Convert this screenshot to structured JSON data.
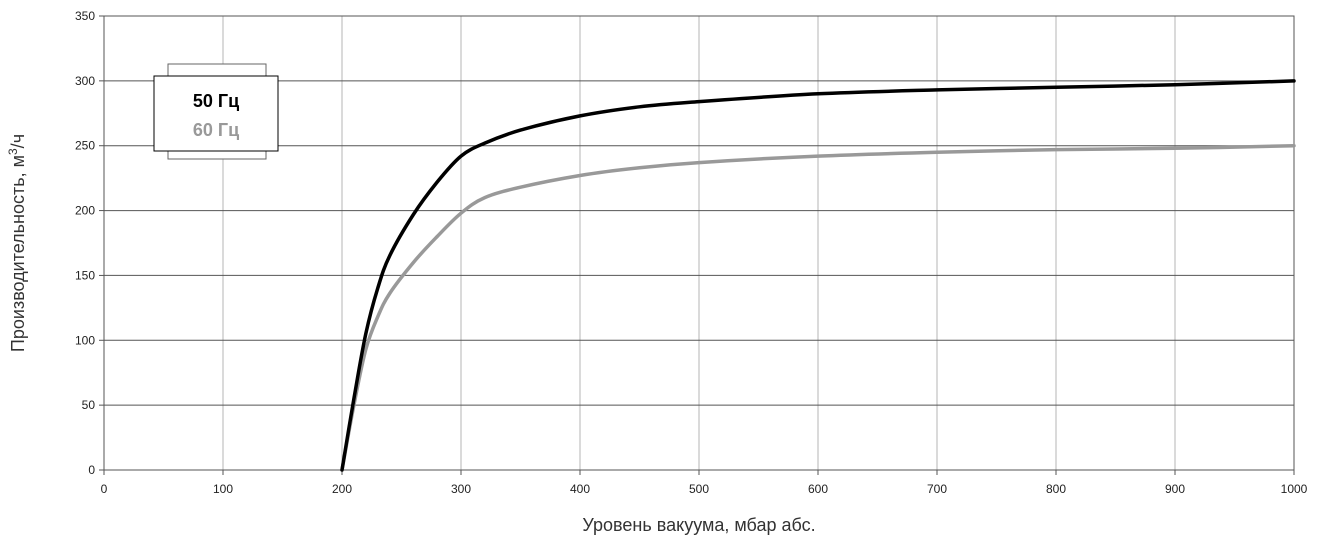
{
  "chart_data": {
    "type": "line",
    "xlabel": "Уровень вакуума, мбар абс.",
    "ylabel_main": "Производительность, м",
    "ylabel_sup": "3",
    "ylabel_tail": "/ч",
    "xlim": [
      0,
      1000
    ],
    "ylim": [
      0,
      350
    ],
    "xticks": [
      0,
      100,
      200,
      300,
      400,
      500,
      600,
      700,
      800,
      900,
      1000
    ],
    "yticks": [
      0,
      50,
      100,
      150,
      200,
      250,
      300,
      350
    ],
    "grid": true,
    "legend_position": "top-left",
    "series": [
      {
        "name": "50 Гц",
        "color": "#000000",
        "x": [
          200,
          210,
          220,
          230,
          240,
          260,
          280,
          300,
          320,
          350,
          400,
          450,
          500,
          600,
          700,
          800,
          900,
          1000
        ],
        "y": [
          0,
          55,
          105,
          140,
          165,
          197,
          222,
          242,
          252,
          262,
          273,
          280,
          284,
          290,
          293,
          295,
          297,
          300
        ]
      },
      {
        "name": "60 Гц",
        "color": "#999999",
        "x": [
          200,
          210,
          220,
          230,
          240,
          260,
          280,
          300,
          320,
          350,
          400,
          450,
          500,
          600,
          700,
          800,
          900,
          1000
        ],
        "y": [
          0,
          50,
          93,
          118,
          136,
          160,
          180,
          198,
          210,
          218,
          227,
          233,
          237,
          242,
          245,
          247,
          248,
          250
        ]
      }
    ]
  }
}
